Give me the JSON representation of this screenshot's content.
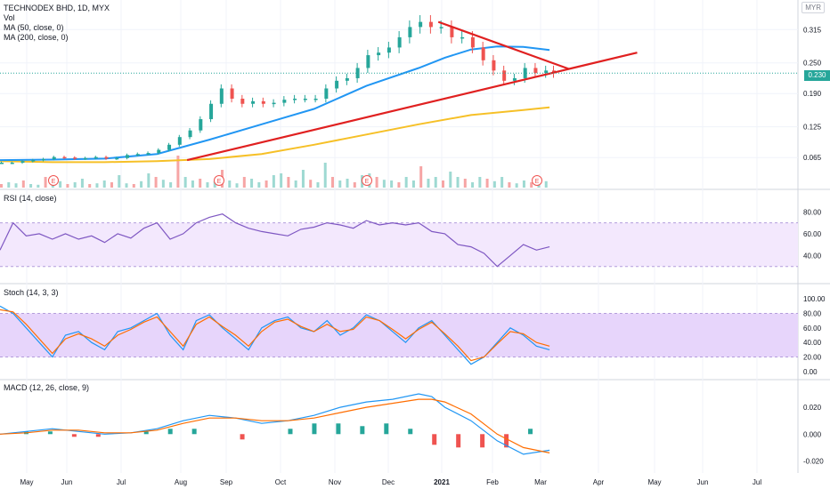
{
  "header": {
    "title_line": "TECHNODEX BHD, 1D, MYX",
    "studies": [
      "Vol",
      "MA (50, close, 0)",
      "MA (200, close, 0)"
    ],
    "currency": "MYR",
    "last_price_label": "0.230"
  },
  "indicators": {
    "rsi_title": "RSI (14, close)",
    "stoch_title": "Stoch (14, 3, 3)",
    "macd_title": "MACD (12, 26, close, 9)"
  },
  "chart_data": [
    {
      "type": "line",
      "panel": "price",
      "x_ticks": [
        "May",
        "Jun",
        "Jul",
        "Aug",
        "Sep",
        "Oct",
        "Nov",
        "Dec",
        "2021",
        "Feb",
        "Mar",
        "Apr",
        "May",
        "Jun",
        "Jul"
      ],
      "y_ticks": [
        "0.315",
        "0.250",
        "0.190",
        "0.125",
        "0.065"
      ],
      "ylim": [
        0.015,
        0.345
      ],
      "earnings_markers": [
        "E",
        "E",
        "E",
        "E"
      ],
      "price_series": {
        "x": [
          0,
          8,
          16,
          24,
          32,
          40,
          48,
          56,
          64,
          72,
          80,
          88,
          96,
          104,
          112,
          120,
          128,
          136,
          144,
          152,
          160,
          168,
          176,
          184,
          192,
          200,
          208,
          216,
          224,
          232,
          240,
          248,
          256,
          264,
          272,
          280,
          288,
          296,
          304,
          312,
          320,
          328,
          336,
          344,
          352,
          360,
          368,
          376,
          384,
          392,
          400,
          408,
          416,
          422
        ],
        "values": [
          0.055,
          0.055,
          0.058,
          0.06,
          0.062,
          0.066,
          0.065,
          0.063,
          0.064,
          0.066,
          0.063,
          0.064,
          0.07,
          0.072,
          0.074,
          0.08,
          0.09,
          0.105,
          0.118,
          0.14,
          0.17,
          0.2,
          0.18,
          0.17,
          0.175,
          0.17,
          0.172,
          0.178,
          0.18,
          0.18,
          0.18,
          0.2,
          0.215,
          0.22,
          0.24,
          0.265,
          0.27,
          0.28,
          0.3,
          0.32,
          0.33,
          0.32,
          0.32,
          0.3,
          0.3,
          0.28,
          0.255,
          0.235,
          0.215,
          0.22,
          0.24,
          0.23,
          0.235,
          0.23
        ]
      },
      "ma50": {
        "x": [
          0,
          40,
          80,
          120,
          160,
          200,
          240,
          280,
          320,
          340,
          360,
          380,
          400,
          420
        ],
        "values": [
          0.06,
          0.061,
          0.063,
          0.072,
          0.1,
          0.13,
          0.16,
          0.205,
          0.24,
          0.26,
          0.276,
          0.282,
          0.281,
          0.275
        ]
      },
      "ma200": {
        "x": [
          0,
          40,
          80,
          120,
          160,
          200,
          240,
          280,
          320,
          360,
          400,
          420
        ],
        "values": [
          0.058,
          0.056,
          0.056,
          0.058,
          0.062,
          0.072,
          0.09,
          0.11,
          0.13,
          0.148,
          0.158,
          0.163
        ]
      },
      "trendlines": [
        {
          "color": "#e02020",
          "x": [
            143,
            487
          ],
          "values": [
            0.06,
            0.27
          ]
        },
        {
          "color": "#e02020",
          "x": [
            335,
            435
          ],
          "values": [
            0.33,
            0.238
          ]
        }
      ],
      "volume": {
        "max_value": 1.0,
        "values": [
          0.1,
          0.15,
          0.12,
          0.2,
          0.1,
          0.08,
          0.3,
          0.12,
          0.18,
          0.1,
          0.15,
          0.25,
          0.1,
          0.12,
          0.2,
          0.15,
          0.35,
          0.12,
          0.1,
          0.18,
          0.4,
          0.3,
          0.22,
          0.15,
          0.9,
          0.3,
          0.2,
          0.25,
          0.15,
          0.18,
          0.5,
          0.2,
          0.12,
          0.3,
          0.25,
          0.15,
          0.2,
          0.35,
          0.4,
          0.3,
          0.2,
          0.5,
          0.22,
          0.15,
          0.7,
          0.3,
          0.2,
          0.25,
          0.15,
          0.35,
          0.4,
          0.3,
          0.22,
          0.2,
          0.15,
          0.3,
          0.2,
          0.6,
          0.25,
          0.3,
          0.2,
          0.45,
          0.3,
          0.25,
          0.15,
          0.3,
          0.25,
          0.18,
          0.3,
          0.15,
          0.12,
          0.2,
          0.15,
          0.1,
          0.18
        ]
      }
    },
    {
      "type": "line",
      "panel": "rsi",
      "y_ticks": [
        "80.00",
        "60.00",
        "40.00"
      ],
      "ylim": [
        20,
        90
      ],
      "band": [
        30,
        70
      ],
      "x": [
        0,
        10,
        20,
        30,
        40,
        50,
        60,
        70,
        80,
        90,
        100,
        110,
        120,
        130,
        140,
        150,
        160,
        170,
        180,
        190,
        200,
        210,
        220,
        230,
        240,
        250,
        260,
        270,
        280,
        290,
        300,
        310,
        320,
        330,
        340,
        350,
        360,
        370,
        380,
        390,
        400,
        410,
        420
      ],
      "values": [
        45,
        70,
        58,
        60,
        55,
        60,
        55,
        58,
        52,
        60,
        56,
        65,
        70,
        55,
        60,
        70,
        75,
        78,
        70,
        65,
        62,
        60,
        58,
        64,
        66,
        70,
        68,
        65,
        72,
        68,
        70,
        68,
        70,
        62,
        60,
        50,
        48,
        42,
        30,
        40,
        50,
        45,
        48
      ]
    },
    {
      "type": "line",
      "panel": "stoch",
      "y_ticks": [
        "100.00",
        "80.00",
        "60.00",
        "40.00",
        "20.00",
        "0.00"
      ],
      "ylim": [
        -5,
        105
      ],
      "band": [
        20,
        80
      ],
      "k": {
        "x": [
          0,
          10,
          20,
          30,
          40,
          50,
          60,
          70,
          80,
          90,
          100,
          110,
          120,
          130,
          140,
          150,
          160,
          170,
          180,
          190,
          200,
          210,
          220,
          230,
          240,
          250,
          260,
          270,
          280,
          290,
          300,
          310,
          320,
          330,
          340,
          350,
          360,
          370,
          380,
          390,
          400,
          410,
          420
        ],
        "values": [
          90,
          80,
          60,
          40,
          20,
          50,
          55,
          40,
          30,
          55,
          60,
          70,
          80,
          50,
          30,
          70,
          78,
          60,
          45,
          30,
          60,
          70,
          75,
          60,
          55,
          70,
          50,
          60,
          78,
          70,
          55,
          40,
          60,
          70,
          50,
          30,
          10,
          20,
          40,
          60,
          50,
          35,
          30
        ]
      },
      "d": {
        "x": [
          0,
          10,
          20,
          30,
          40,
          50,
          60,
          70,
          80,
          90,
          100,
          110,
          120,
          130,
          140,
          150,
          160,
          170,
          180,
          190,
          200,
          210,
          220,
          230,
          240,
          250,
          260,
          270,
          280,
          290,
          300,
          310,
          320,
          330,
          340,
          350,
          360,
          370,
          380,
          390,
          400,
          410,
          420
        ],
        "values": [
          85,
          82,
          65,
          45,
          25,
          45,
          52,
          45,
          35,
          50,
          58,
          68,
          75,
          55,
          35,
          65,
          75,
          62,
          50,
          35,
          55,
          68,
          72,
          62,
          55,
          65,
          55,
          58,
          75,
          70,
          58,
          45,
          58,
          68,
          52,
          35,
          15,
          20,
          38,
          55,
          52,
          40,
          35
        ]
      }
    },
    {
      "type": "line",
      "panel": "macd",
      "y_ticks": [
        "0.020",
        "0.000",
        "-0.020"
      ],
      "ylim": [
        -0.025,
        0.032
      ],
      "macd": {
        "x": [
          0,
          20,
          40,
          60,
          80,
          100,
          120,
          140,
          160,
          180,
          200,
          220,
          240,
          260,
          280,
          300,
          320,
          330,
          340,
          360,
          380,
          400,
          420
        ],
        "values": [
          0.0,
          0.002,
          0.004,
          0.002,
          0.0,
          0.001,
          0.004,
          0.01,
          0.014,
          0.012,
          0.008,
          0.01,
          0.014,
          0.02,
          0.024,
          0.026,
          0.03,
          0.028,
          0.02,
          0.01,
          -0.005,
          -0.015,
          -0.012
        ]
      },
      "signal": {
        "x": [
          0,
          20,
          40,
          60,
          80,
          100,
          120,
          140,
          160,
          180,
          200,
          220,
          240,
          260,
          280,
          300,
          320,
          330,
          340,
          360,
          380,
          400,
          420
        ],
        "values": [
          0.0,
          0.001,
          0.003,
          0.003,
          0.001,
          0.001,
          0.003,
          0.008,
          0.012,
          0.012,
          0.01,
          0.01,
          0.012,
          0.016,
          0.02,
          0.023,
          0.026,
          0.026,
          0.024,
          0.015,
          0.0,
          -0.01,
          -0.014
        ]
      },
      "histogram": [
        0,
        1,
        1,
        -1,
        -1,
        0,
        1,
        2,
        2,
        0,
        -2,
        0,
        2,
        4,
        4,
        3,
        4,
        2,
        -4,
        -5,
        -5,
        -5,
        2
      ]
    }
  ]
}
